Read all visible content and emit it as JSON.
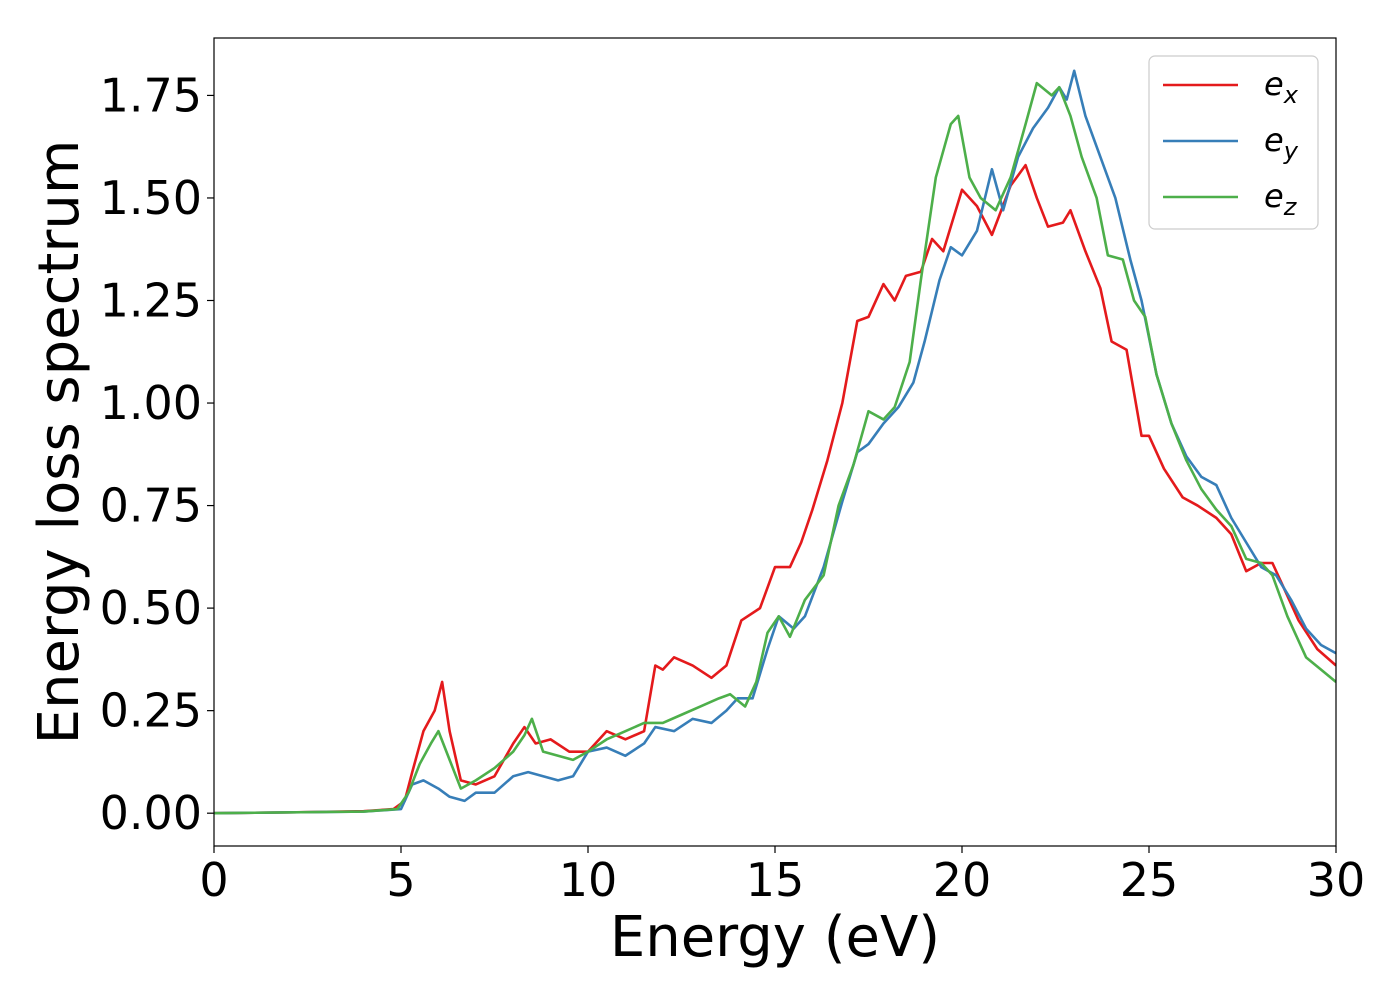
{
  "chart_data": {
    "type": "line",
    "title": "",
    "xlabel": "Energy (eV)",
    "ylabel": "Energy loss spectrum",
    "xlim": [
      0,
      30
    ],
    "ylim": [
      -0.08,
      1.89
    ],
    "xticks": [
      0,
      5,
      10,
      15,
      20,
      25,
      30
    ],
    "xtick_labels": [
      "0",
      "5",
      "10",
      "15",
      "20",
      "25",
      "30"
    ],
    "yticks": [
      0.0,
      0.25,
      0.5,
      0.75,
      1.0,
      1.25,
      1.5,
      1.75
    ],
    "ytick_labels": [
      "0.00",
      "0.25",
      "0.50",
      "0.75",
      "1.00",
      "1.25",
      "1.50",
      "1.75"
    ],
    "grid": false,
    "legend_position": "top-right",
    "series": [
      {
        "name": "e",
        "subscript": "x",
        "color": "#e41a1c",
        "points": [
          [
            0,
            0
          ],
          [
            2,
            0.002
          ],
          [
            4,
            0.005
          ],
          [
            4.8,
            0.01
          ],
          [
            5.1,
            0.03
          ],
          [
            5.3,
            0.1
          ],
          [
            5.6,
            0.2
          ],
          [
            5.9,
            0.25
          ],
          [
            6.1,
            0.32
          ],
          [
            6.3,
            0.2
          ],
          [
            6.6,
            0.08
          ],
          [
            7,
            0.07
          ],
          [
            7.5,
            0.09
          ],
          [
            8,
            0.17
          ],
          [
            8.3,
            0.21
          ],
          [
            8.6,
            0.17
          ],
          [
            9,
            0.18
          ],
          [
            9.5,
            0.15
          ],
          [
            10,
            0.15
          ],
          [
            10.5,
            0.2
          ],
          [
            11,
            0.18
          ],
          [
            11.5,
            0.2
          ],
          [
            11.8,
            0.36
          ],
          [
            12,
            0.35
          ],
          [
            12.3,
            0.38
          ],
          [
            12.8,
            0.36
          ],
          [
            13.3,
            0.33
          ],
          [
            13.7,
            0.36
          ],
          [
            14.1,
            0.47
          ],
          [
            14.6,
            0.5
          ],
          [
            15,
            0.6
          ],
          [
            15.4,
            0.6
          ],
          [
            15.7,
            0.66
          ],
          [
            16,
            0.74
          ],
          [
            16.4,
            0.86
          ],
          [
            16.8,
            1.0
          ],
          [
            17.2,
            1.2
          ],
          [
            17.5,
            1.21
          ],
          [
            17.9,
            1.29
          ],
          [
            18.2,
            1.25
          ],
          [
            18.5,
            1.31
          ],
          [
            18.9,
            1.32
          ],
          [
            19.2,
            1.4
          ],
          [
            19.5,
            1.37
          ],
          [
            20,
            1.52
          ],
          [
            20.4,
            1.48
          ],
          [
            20.8,
            1.41
          ],
          [
            21.3,
            1.53
          ],
          [
            21.7,
            1.58
          ],
          [
            22,
            1.5
          ],
          [
            22.3,
            1.43
          ],
          [
            22.7,
            1.44
          ],
          [
            22.9,
            1.47
          ],
          [
            23.3,
            1.37
          ],
          [
            23.7,
            1.28
          ],
          [
            24,
            1.15
          ],
          [
            24.4,
            1.13
          ],
          [
            24.8,
            0.92
          ],
          [
            25,
            0.92
          ],
          [
            25.4,
            0.84
          ],
          [
            25.9,
            0.77
          ],
          [
            26.3,
            0.75
          ],
          [
            26.8,
            0.72
          ],
          [
            27.2,
            0.68
          ],
          [
            27.6,
            0.59
          ],
          [
            28,
            0.61
          ],
          [
            28.3,
            0.61
          ],
          [
            28.6,
            0.55
          ],
          [
            29,
            0.47
          ],
          [
            29.5,
            0.4
          ],
          [
            30,
            0.36
          ]
        ]
      },
      {
        "name": "e",
        "subscript": "y",
        "color": "#377eb8",
        "points": [
          [
            0,
            0
          ],
          [
            2,
            0.002
          ],
          [
            4,
            0.004
          ],
          [
            5,
            0.01
          ],
          [
            5.3,
            0.07
          ],
          [
            5.6,
            0.08
          ],
          [
            6,
            0.06
          ],
          [
            6.3,
            0.04
          ],
          [
            6.7,
            0.03
          ],
          [
            7,
            0.05
          ],
          [
            7.5,
            0.05
          ],
          [
            8,
            0.09
          ],
          [
            8.4,
            0.1
          ],
          [
            8.8,
            0.09
          ],
          [
            9.2,
            0.08
          ],
          [
            9.6,
            0.09
          ],
          [
            10,
            0.15
          ],
          [
            10.5,
            0.16
          ],
          [
            11,
            0.14
          ],
          [
            11.5,
            0.17
          ],
          [
            11.8,
            0.21
          ],
          [
            12.3,
            0.2
          ],
          [
            12.8,
            0.23
          ],
          [
            13.3,
            0.22
          ],
          [
            13.7,
            0.25
          ],
          [
            14,
            0.28
          ],
          [
            14.4,
            0.28
          ],
          [
            14.8,
            0.4
          ],
          [
            15.1,
            0.48
          ],
          [
            15.5,
            0.45
          ],
          [
            15.8,
            0.48
          ],
          [
            16.3,
            0.6
          ],
          [
            16.8,
            0.76
          ],
          [
            17.2,
            0.88
          ],
          [
            17.5,
            0.9
          ],
          [
            17.9,
            0.95
          ],
          [
            18.3,
            0.99
          ],
          [
            18.7,
            1.05
          ],
          [
            19,
            1.15
          ],
          [
            19.4,
            1.3
          ],
          [
            19.7,
            1.38
          ],
          [
            20,
            1.36
          ],
          [
            20.4,
            1.42
          ],
          [
            20.8,
            1.57
          ],
          [
            21.1,
            1.47
          ],
          [
            21.5,
            1.6
          ],
          [
            21.9,
            1.67
          ],
          [
            22.3,
            1.72
          ],
          [
            22.6,
            1.77
          ],
          [
            22.8,
            1.74
          ],
          [
            23,
            1.81
          ],
          [
            23.3,
            1.7
          ],
          [
            23.7,
            1.6
          ],
          [
            24.1,
            1.5
          ],
          [
            24.5,
            1.35
          ],
          [
            24.8,
            1.25
          ],
          [
            25.2,
            1.07
          ],
          [
            25.6,
            0.95
          ],
          [
            26,
            0.87
          ],
          [
            26.4,
            0.82
          ],
          [
            26.8,
            0.8
          ],
          [
            27.2,
            0.72
          ],
          [
            27.6,
            0.66
          ],
          [
            28,
            0.6
          ],
          [
            28.4,
            0.58
          ],
          [
            28.8,
            0.52
          ],
          [
            29.2,
            0.45
          ],
          [
            29.6,
            0.41
          ],
          [
            30,
            0.39
          ]
        ]
      },
      {
        "name": "e",
        "subscript": "z",
        "color": "#4daf4a",
        "points": [
          [
            0,
            0
          ],
          [
            2,
            0.002
          ],
          [
            4,
            0.004
          ],
          [
            4.9,
            0.01
          ],
          [
            5.2,
            0.05
          ],
          [
            5.5,
            0.12
          ],
          [
            5.8,
            0.17
          ],
          [
            6,
            0.2
          ],
          [
            6.3,
            0.13
          ],
          [
            6.6,
            0.06
          ],
          [
            7,
            0.08
          ],
          [
            7.5,
            0.11
          ],
          [
            8,
            0.15
          ],
          [
            8.3,
            0.19
          ],
          [
            8.5,
            0.23
          ],
          [
            8.8,
            0.15
          ],
          [
            9.2,
            0.14
          ],
          [
            9.6,
            0.13
          ],
          [
            10,
            0.15
          ],
          [
            10.5,
            0.18
          ],
          [
            11,
            0.2
          ],
          [
            11.5,
            0.22
          ],
          [
            12,
            0.22
          ],
          [
            12.5,
            0.24
          ],
          [
            13,
            0.26
          ],
          [
            13.5,
            0.28
          ],
          [
            13.8,
            0.29
          ],
          [
            14.2,
            0.26
          ],
          [
            14.5,
            0.32
          ],
          [
            14.8,
            0.44
          ],
          [
            15.1,
            0.48
          ],
          [
            15.4,
            0.43
          ],
          [
            15.8,
            0.52
          ],
          [
            16.3,
            0.58
          ],
          [
            16.7,
            0.75
          ],
          [
            17.1,
            0.85
          ],
          [
            17.5,
            0.98
          ],
          [
            17.9,
            0.96
          ],
          [
            18.2,
            0.99
          ],
          [
            18.6,
            1.1
          ],
          [
            18.9,
            1.3
          ],
          [
            19.3,
            1.55
          ],
          [
            19.7,
            1.68
          ],
          [
            19.9,
            1.7
          ],
          [
            20.2,
            1.55
          ],
          [
            20.5,
            1.5
          ],
          [
            20.9,
            1.47
          ],
          [
            21.3,
            1.55
          ],
          [
            21.7,
            1.68
          ],
          [
            22,
            1.78
          ],
          [
            22.4,
            1.75
          ],
          [
            22.6,
            1.77
          ],
          [
            22.9,
            1.7
          ],
          [
            23.2,
            1.6
          ],
          [
            23.6,
            1.5
          ],
          [
            23.9,
            1.36
          ],
          [
            24.3,
            1.35
          ],
          [
            24.6,
            1.25
          ],
          [
            24.9,
            1.21
          ],
          [
            25.2,
            1.07
          ],
          [
            25.6,
            0.95
          ],
          [
            26,
            0.86
          ],
          [
            26.4,
            0.79
          ],
          [
            26.8,
            0.74
          ],
          [
            27.2,
            0.7
          ],
          [
            27.6,
            0.62
          ],
          [
            28,
            0.61
          ],
          [
            28.3,
            0.58
          ],
          [
            28.7,
            0.48
          ],
          [
            29.2,
            0.38
          ],
          [
            29.6,
            0.35
          ],
          [
            30,
            0.32
          ]
        ]
      }
    ]
  }
}
